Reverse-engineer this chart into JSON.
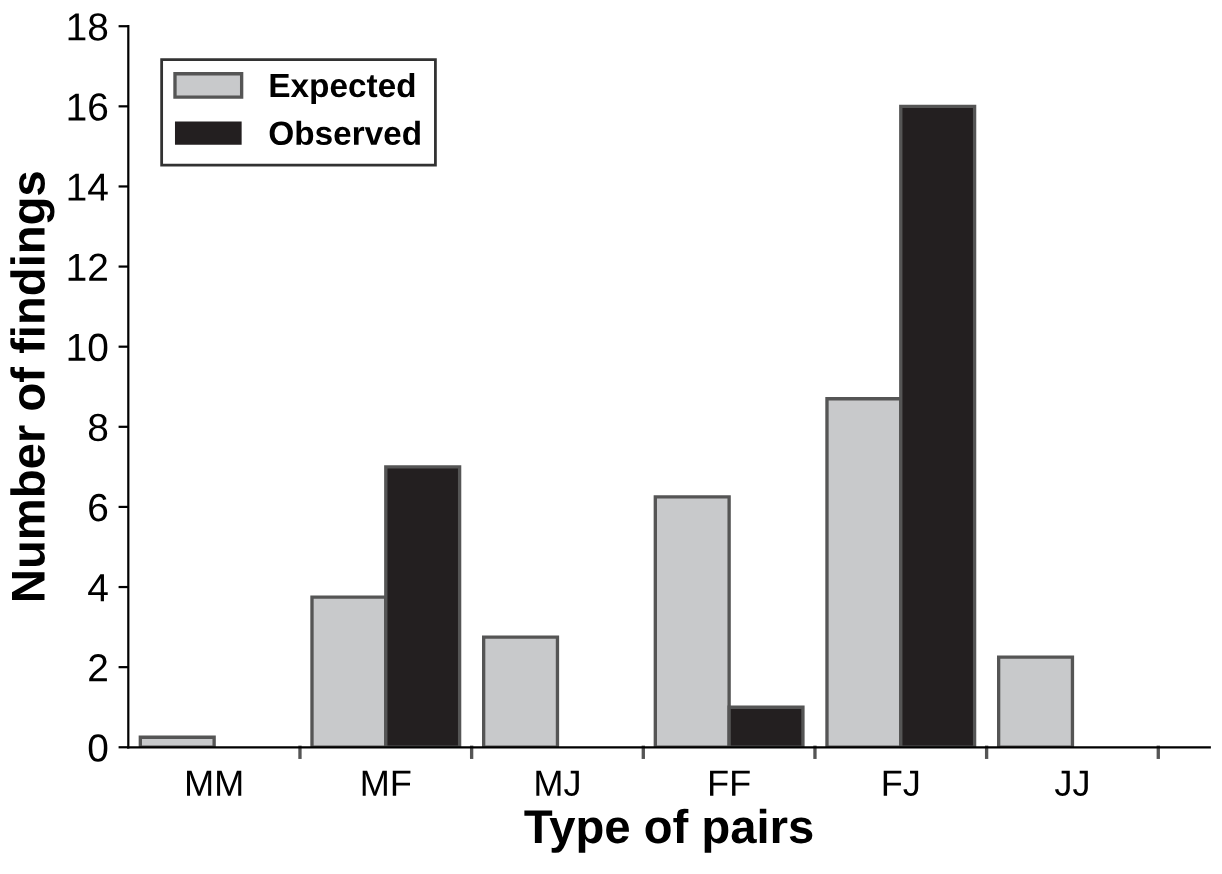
{
  "chart_data": {
    "type": "bar",
    "xlabel": "Type of pairs",
    "ylabel": "Number of findings",
    "categories": [
      "MM",
      "MF",
      "MJ",
      "FF",
      "FJ",
      "JJ"
    ],
    "series": [
      {
        "name": "Expected",
        "color": "#c8c9cb",
        "values": [
          0.25,
          3.75,
          2.75,
          6.25,
          8.7,
          2.25
        ]
      },
      {
        "name": "Observed",
        "color": "#231f20",
        "values": [
          0,
          7,
          0,
          1,
          16,
          0
        ]
      }
    ],
    "ylim": [
      0,
      18
    ],
    "yticks": [
      0,
      2,
      4,
      6,
      8,
      10,
      12,
      14,
      16,
      18
    ],
    "grid": false,
    "legend": "top left"
  }
}
